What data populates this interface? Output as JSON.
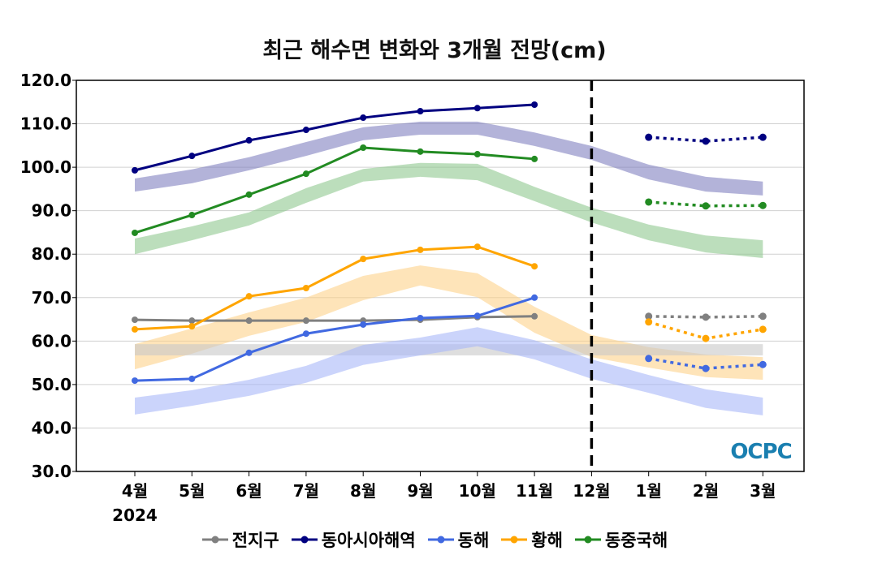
{
  "chart_data": {
    "type": "line",
    "title": "최근 해수면 변화와 3개월 전망(cm)",
    "categories": [
      "4월",
      "5월",
      "6월",
      "7월",
      "8월",
      "9월",
      "10월",
      "11월",
      "12월",
      "1월",
      "2월",
      "3월"
    ],
    "year_label": "2024",
    "ylim": [
      30,
      120
    ],
    "yticks": [
      "30.0",
      "40.0",
      "50.0",
      "60.0",
      "70.0",
      "80.0",
      "90.0",
      "100.0",
      "110.0",
      "120.0"
    ],
    "grid": true,
    "legend_position": "bottom",
    "forecast_divider_after": "11월",
    "watermark": "OCPC",
    "series": [
      {
        "name": "전지구",
        "color": "#808080",
        "band_color": "#c8c8c8",
        "observed": [
          64.9,
          64.7,
          64.7,
          64.7,
          64.7,
          64.9,
          65.5,
          65.7
        ],
        "forecast": [
          65.7,
          65.5,
          65.7
        ],
        "band_upper": [
          59.3,
          59.3,
          59.3,
          59.3,
          59.3,
          59.3,
          59.3,
          59.3,
          59.3,
          59.3,
          59.3,
          59.3
        ],
        "band_lower": [
          56.7,
          56.7,
          56.7,
          56.7,
          56.7,
          56.7,
          56.7,
          56.7,
          56.7,
          56.7,
          56.7,
          56.7
        ]
      },
      {
        "name": "동아시아해역",
        "color": "#000080",
        "band_color": "#8080c0",
        "observed": [
          99.3,
          102.6,
          106.2,
          108.6,
          111.4,
          112.9,
          113.6,
          114.4
        ],
        "forecast": [
          106.9,
          106.0,
          106.9
        ],
        "band_upper": [
          97.4,
          99.5,
          102.3,
          105.8,
          109.2,
          110.5,
          110.5,
          108.0,
          104.9,
          100.6,
          97.8,
          96.7
        ],
        "band_lower": [
          94.4,
          96.3,
          99.3,
          102.6,
          106.2,
          107.5,
          107.5,
          104.9,
          101.7,
          97.2,
          94.4,
          93.5
        ]
      },
      {
        "name": "동해",
        "color": "#4169e1",
        "band_color": "#a8b8f8",
        "observed": [
          50.9,
          51.3,
          57.3,
          61.7,
          63.8,
          65.3,
          65.8,
          70.0
        ],
        "forecast": [
          56.0,
          53.7,
          54.6
        ],
        "band_upper": [
          47.0,
          48.7,
          51.1,
          54.3,
          59.1,
          60.8,
          63.2,
          60.2,
          55.8,
          52.2,
          48.9,
          47.0
        ],
        "band_lower": [
          43.1,
          45.1,
          47.4,
          50.4,
          54.5,
          56.7,
          58.8,
          55.8,
          51.3,
          48.1,
          44.6,
          42.9
        ]
      },
      {
        "name": "황해",
        "color": "#ffa500",
        "band_color": "#fdd28a",
        "observed": [
          62.7,
          63.4,
          70.3,
          72.2,
          78.9,
          81.0,
          81.7,
          77.2
        ],
        "forecast": [
          64.4,
          60.6,
          62.7
        ],
        "band_upper": [
          59.3,
          62.9,
          66.6,
          70.0,
          75.0,
          77.4,
          75.6,
          67.9,
          61.4,
          58.6,
          56.9,
          56.3
        ],
        "band_lower": [
          53.5,
          57.1,
          61.2,
          64.4,
          69.4,
          72.8,
          70.1,
          61.9,
          56.3,
          53.9,
          51.7,
          51.1
        ]
      },
      {
        "name": "동중국해",
        "color": "#228b22",
        "band_color": "#90c890",
        "observed": [
          84.9,
          89.0,
          93.7,
          98.5,
          104.5,
          103.6,
          103.0,
          101.9
        ],
        "forecast": [
          92.0,
          91.1,
          91.2
        ],
        "band_upper": [
          83.6,
          86.4,
          89.6,
          95.2,
          99.6,
          101.0,
          100.8,
          95.5,
          90.7,
          86.8,
          84.3,
          83.2
        ],
        "band_lower": [
          80.0,
          83.2,
          86.6,
          91.8,
          96.7,
          97.8,
          97.0,
          92.2,
          87.3,
          83.2,
          80.4,
          79.1
        ]
      }
    ]
  }
}
